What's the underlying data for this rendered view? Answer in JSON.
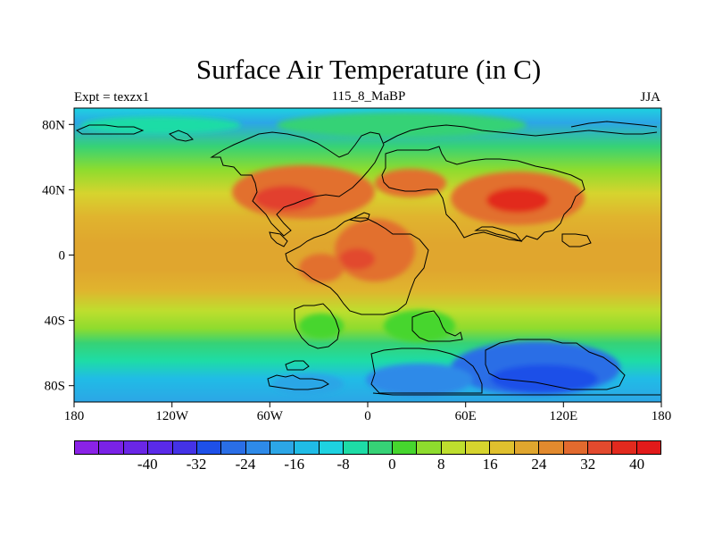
{
  "title": "Surface Air Temperature (in C)",
  "subtitle_left": "Expt = texzx1",
  "subtitle_center": "115_8_MaBP",
  "subtitle_right": "JJA",
  "axes": {
    "x_ticks": [
      "180",
      "120W",
      "60W",
      "0",
      "60E",
      "120E",
      "180"
    ],
    "y_ticks": [
      "80N",
      "40N",
      "0",
      "40S",
      "80S"
    ]
  },
  "colorbar": {
    "labels": [
      "-40",
      "-32",
      "-24",
      "-16",
      "-8",
      "0",
      "8",
      "16",
      "24",
      "32",
      "40"
    ],
    "colors": [
      "#8a22e6",
      "#7a22e6",
      "#6a26e6",
      "#5a2ae8",
      "#4432e6",
      "#1e50e8",
      "#2a6ee6",
      "#2e8ae8",
      "#2ca6e6",
      "#20bce6",
      "#1ed2e0",
      "#1edca6",
      "#36d276",
      "#46d62e",
      "#8edc2e",
      "#bede2e",
      "#d6d42e",
      "#e0c02e",
      "#e0a62e",
      "#e28a2e",
      "#e26a2e",
      "#e24a2e",
      "#e22a1e",
      "#e21a1a"
    ]
  },
  "map": {
    "projection": "cylindrical-equidistant",
    "lon_range": [
      -180,
      180
    ],
    "lat_range": [
      -90,
      90
    ]
  }
}
